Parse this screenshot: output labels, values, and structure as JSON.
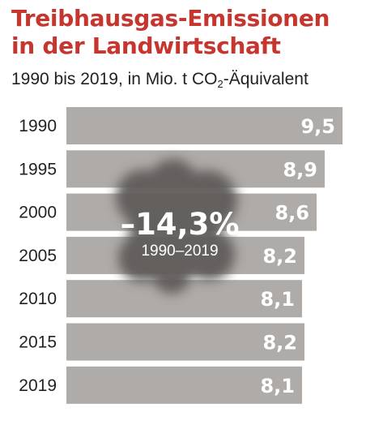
{
  "title": {
    "line1": "Treibhausgas-Emissionen",
    "line2": "in der Landwirtschaft"
  },
  "subtitle": {
    "pre": "1990 bis 2019, in Mio. t CO",
    "sub": "2",
    "post": "-Äquivalent"
  },
  "annotation": {
    "value": "–14,3%",
    "period": "1990–2019"
  },
  "colors": {
    "title": "#c7352f",
    "bar": "#aeaba8",
    "bar_label": "#ffffff",
    "category_label": "#222222",
    "cloud": "#5f5c5a"
  },
  "chart_data": {
    "type": "bar",
    "orientation": "horizontal",
    "title": "Treibhausgas-Emissionen in der Landwirtschaft",
    "subtitle": "1990 bis 2019, in Mio. t CO2-Äquivalent",
    "categories": [
      "1990",
      "1995",
      "2000",
      "2005",
      "2010",
      "2015",
      "2019"
    ],
    "values": [
      9.5,
      8.9,
      8.6,
      8.2,
      8.1,
      8.2,
      8.1
    ],
    "value_labels": [
      "9,5",
      "8,9",
      "8,6",
      "8,2",
      "8,1",
      "8,2",
      "8,1"
    ],
    "xlim": [
      0,
      9.5
    ],
    "grid": false,
    "legend": "none"
  }
}
